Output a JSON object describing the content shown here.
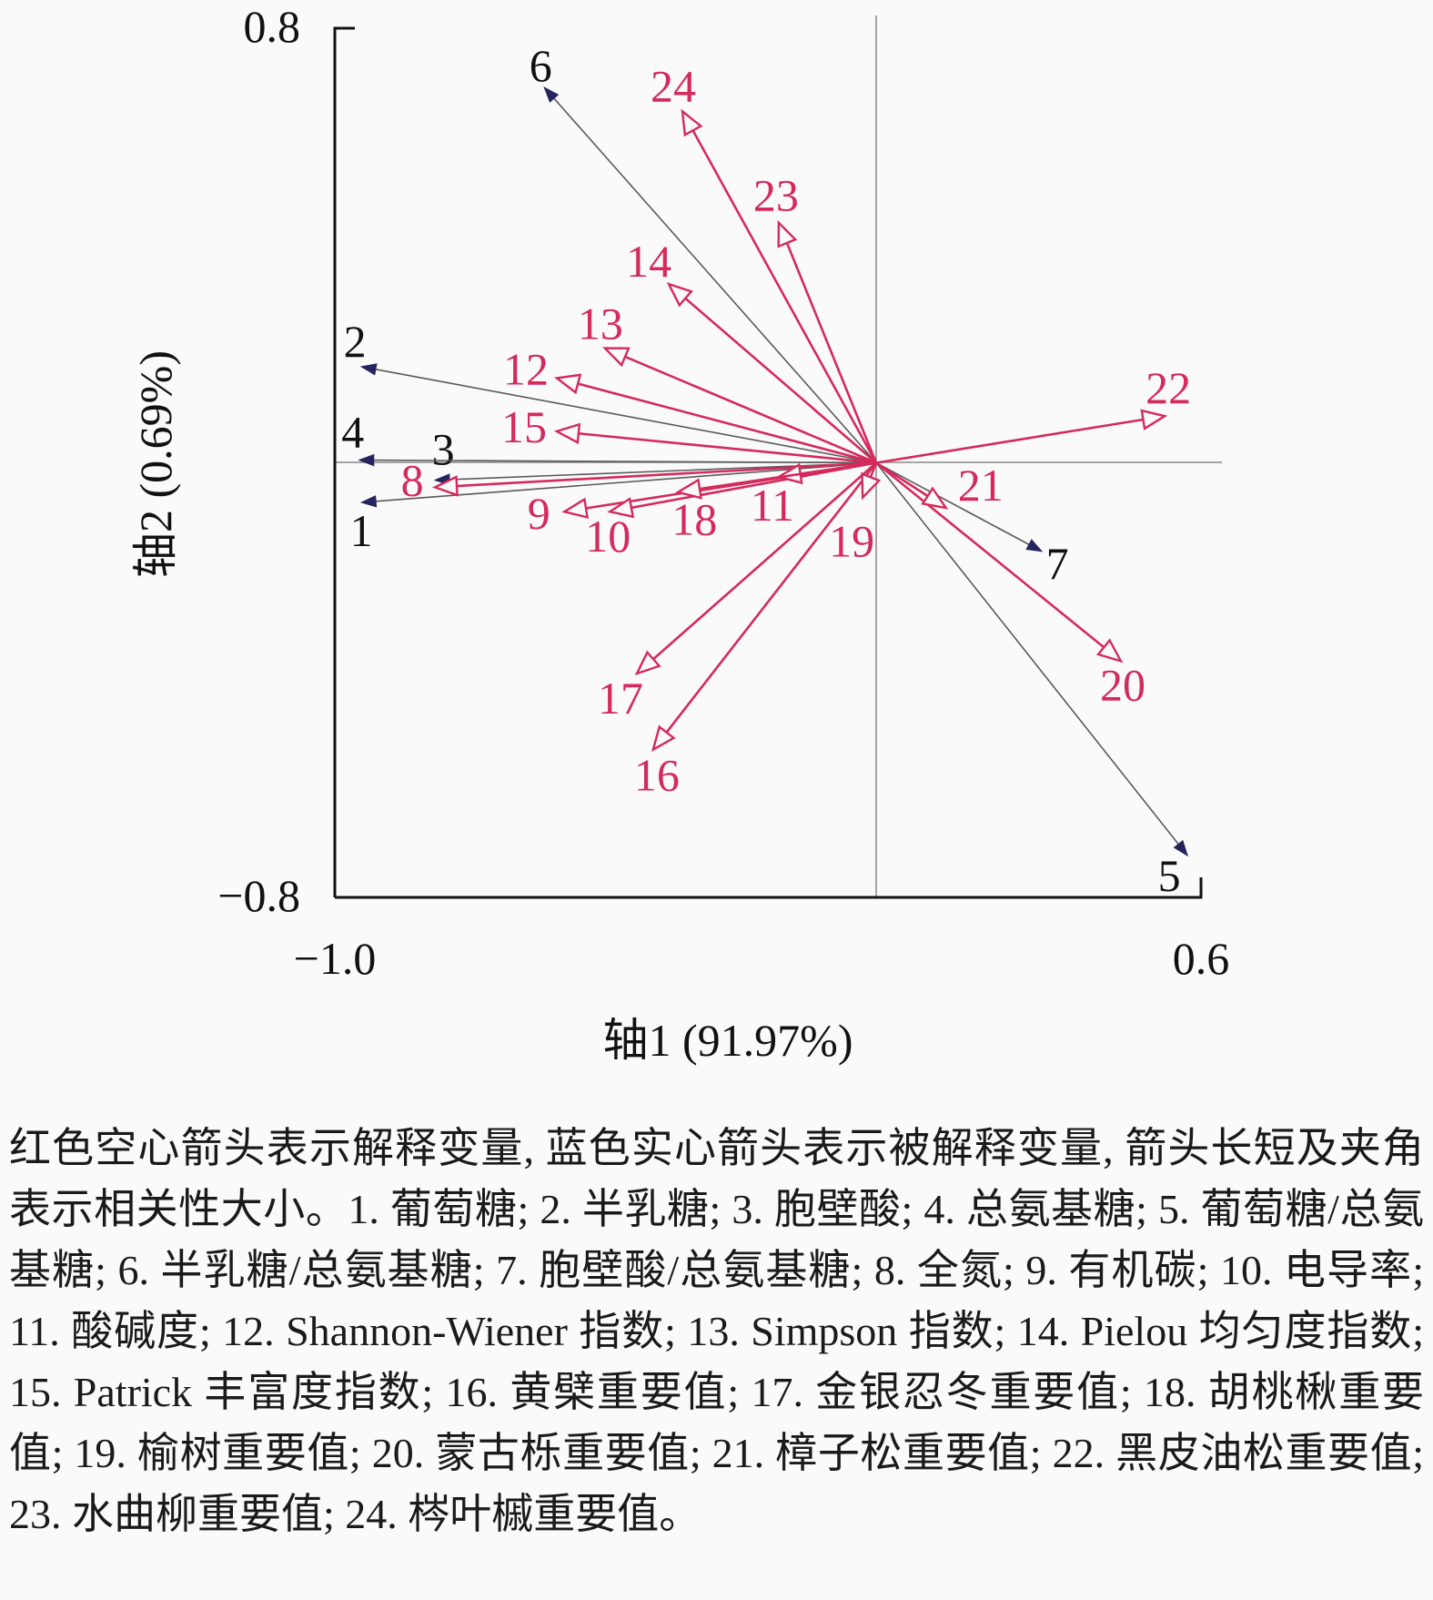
{
  "chart_data": {
    "type": "biplot",
    "xlabel": "轴1 (91.97%)",
    "ylabel": "轴2 (0.69%)",
    "xlim": [
      -1.0,
      0.6
    ],
    "ylim": [
      -0.8,
      0.8
    ],
    "x_tick_labels": [
      "−1.0",
      "0.6"
    ],
    "y_tick_labels": [
      "0.8",
      "−0.8"
    ],
    "grid": false,
    "colors": {
      "explanatory": "#d42a5c",
      "response_line": "#5a5a5a",
      "response_head": "#24245e",
      "response_label": "#111111"
    },
    "vectors": [
      {
        "label": "1",
        "kind": "response",
        "x": -0.951,
        "y": -0.073
      },
      {
        "label": "2",
        "kind": "response",
        "x": -0.951,
        "y": 0.177
      },
      {
        "label": "3",
        "kind": "response",
        "x": -0.815,
        "y": -0.032
      },
      {
        "label": "4",
        "kind": "response",
        "x": -0.955,
        "y": 0.005
      },
      {
        "label": "5",
        "kind": "response",
        "x": 0.575,
        "y": -0.723
      },
      {
        "label": "6",
        "kind": "response",
        "x": -0.613,
        "y": 0.691
      },
      {
        "label": "7",
        "kind": "response",
        "x": 0.306,
        "y": -0.163
      },
      {
        "label": "8",
        "kind": "explanatory",
        "x": -0.815,
        "y": -0.045
      },
      {
        "label": "9",
        "kind": "explanatory",
        "x": -0.576,
        "y": -0.09
      },
      {
        "label": "10",
        "kind": "explanatory",
        "x": -0.492,
        "y": -0.09
      },
      {
        "label": "11",
        "kind": "explanatory",
        "x": -0.18,
        "y": -0.026
      },
      {
        "label": "12",
        "kind": "explanatory",
        "x": -0.59,
        "y": 0.156
      },
      {
        "label": "13",
        "kind": "explanatory",
        "x": -0.501,
        "y": 0.211
      },
      {
        "label": "14",
        "kind": "explanatory",
        "x": -0.383,
        "y": 0.329
      },
      {
        "label": "15",
        "kind": "explanatory",
        "x": -0.59,
        "y": 0.058
      },
      {
        "label": "16",
        "kind": "explanatory",
        "x": -0.412,
        "y": -0.528
      },
      {
        "label": "17",
        "kind": "explanatory",
        "x": -0.442,
        "y": -0.388
      },
      {
        "label": "18",
        "kind": "explanatory",
        "x": -0.366,
        "y": -0.054
      },
      {
        "label": "19",
        "kind": "explanatory",
        "x": -0.025,
        "y": -0.064
      },
      {
        "label": "20",
        "kind": "explanatory",
        "x": 0.452,
        "y": -0.365
      },
      {
        "label": "21",
        "kind": "explanatory",
        "x": 0.129,
        "y": -0.083
      },
      {
        "label": "22",
        "kind": "explanatory",
        "x": 0.533,
        "y": 0.086
      },
      {
        "label": "23",
        "kind": "explanatory",
        "x": -0.18,
        "y": 0.442
      },
      {
        "label": "24",
        "kind": "explanatory",
        "x": -0.358,
        "y": 0.647
      }
    ]
  },
  "caption": "红色空心箭头表示解释变量, 蓝色实心箭头表示被解释变量, 箭头长短及夹角表示相关性大小。1. 葡萄糖; 2. 半乳糖; 3. 胞壁酸; 4. 总氨基糖; 5. 葡萄糖/总氨基糖; 6. 半乳糖/总氨基糖; 7. 胞壁酸/总氨基糖; 8. 全氮; 9. 有机碳; 10. 电导率; 11. 酸碱度; 12. Shannon-Wiener 指数; 13. Simpson 指数; 14. Pielou 均匀度指数; 15. Patrick 丰富度指数; 16. 黄檗重要值; 17. 金银忍冬重要值; 18. 胡桃楸重要值; 19. 榆树重要值; 20. 蒙古栎重要值; 21. 樟子松重要值; 22. 黑皮油松重要值; 23. 水曲柳重要值; 24. 梣叶槭重要值。"
}
